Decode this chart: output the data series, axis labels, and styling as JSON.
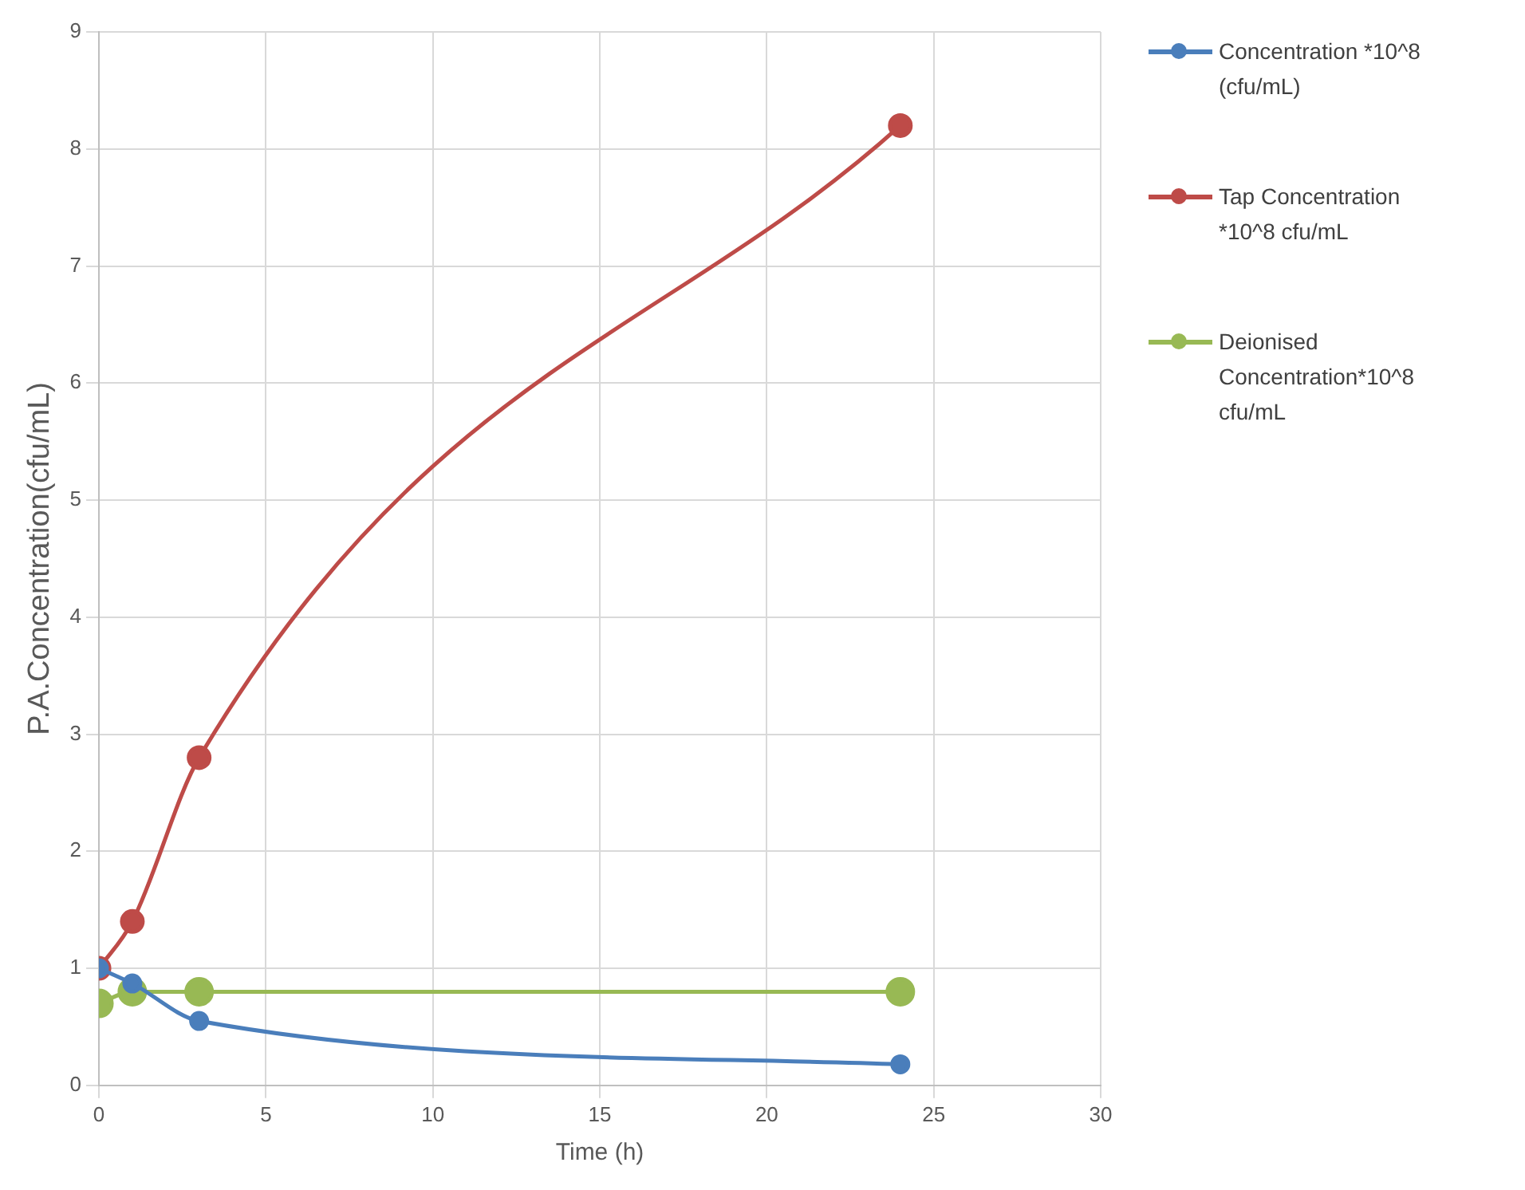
{
  "chart_data": {
    "type": "line",
    "xlabel": "Time (h)",
    "ylabel": "P.A.Concentration(cfu/mL)",
    "x": [
      0,
      1,
      3,
      24
    ],
    "xlim": [
      0,
      30
    ],
    "xticks": [
      0,
      5,
      10,
      15,
      20,
      25,
      30
    ],
    "ylim": [
      0,
      9
    ],
    "yticks": [
      0,
      1,
      2,
      3,
      4,
      5,
      6,
      7,
      8,
      9
    ],
    "grid": true,
    "legend": "right",
    "marker": "circle",
    "series": [
      {
        "name": "Concentration *10^8 (cfu/mL)",
        "color": "#4a7ebb",
        "values": [
          1.0,
          0.87,
          0.55,
          0.18
        ]
      },
      {
        "name": "Tap Concentration *10^8 cfu/mL",
        "color": "#be4b48",
        "values": [
          1.0,
          1.4,
          2.8,
          8.2
        ]
      },
      {
        "name": "Deionised Concentration*10^8 cfu/mL",
        "color": "#98b954",
        "values": [
          0.7,
          0.8,
          0.8,
          0.8
        ]
      }
    ]
  }
}
